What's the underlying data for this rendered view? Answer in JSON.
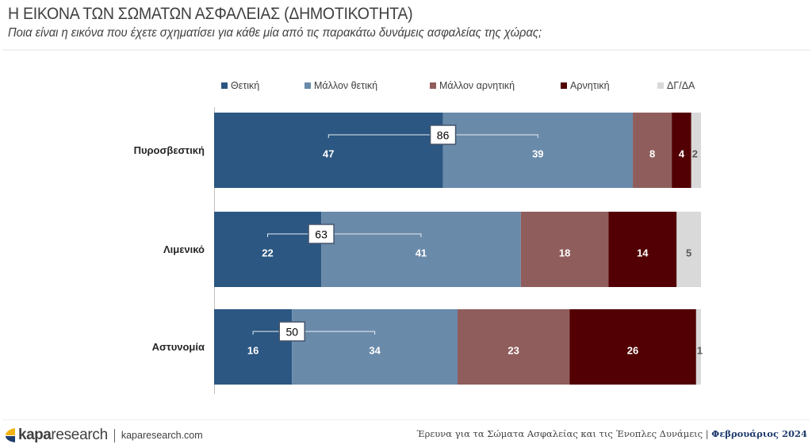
{
  "header": {
    "title": "Η ΕΙΚΟΝΑ ΤΩΝ ΣΩΜΑΤΩΝ ΑΣΦΑΛΕΙΑΣ (ΔΗΜΟΤΙΚΟΤΗΤΑ)",
    "subtitle": "Ποια είναι η εικόνα που έχετε σχηματίσει για κάθε μία από τις παρακάτω δυνάμεις ασφαλείας της χώρας;"
  },
  "chart_data": {
    "type": "bar",
    "orientation": "horizontal",
    "stacked": true,
    "title": "Η ΕΙΚΟΝΑ ΤΩΝ ΣΩΜΑΤΩΝ ΑΣΦΑΛΕΙΑΣ (ΔΗΜΟΤΙΚΟΤΗΤΑ)",
    "xlabel": "",
    "ylabel": "",
    "xlim": [
      0,
      100
    ],
    "grid": false,
    "legend_position": "top",
    "categories": [
      "Πυροσβεστική",
      "Λιμενικό",
      "Αστυνομία"
    ],
    "series": [
      {
        "name": "Θετική",
        "color": "#2b5782",
        "label_color": "#ffffff",
        "values": [
          47,
          22,
          16
        ]
      },
      {
        "name": "Μάλλον θετική",
        "color": "#6a8aaa",
        "label_color": "#ffffff",
        "values": [
          39,
          41,
          34
        ]
      },
      {
        "name": "Μάλλον αρνητική",
        "color": "#8f5e5c",
        "label_color": "#ffffff",
        "values": [
          8,
          18,
          23
        ]
      },
      {
        "name": "Αρνητική",
        "color": "#520003",
        "label_color": "#ffffff",
        "values": [
          4,
          14,
          26
        ]
      },
      {
        "name": "ΔΓ/ΔΑ",
        "color": "#d9d9d9",
        "label_color": "#595959",
        "values": [
          2,
          5,
          1
        ]
      }
    ],
    "totals_positive": [
      86,
      63,
      50
    ]
  },
  "footer": {
    "logo_bold": "kapa",
    "logo_light": "research",
    "site": "kaparesearch.com",
    "survey": "Έρευνα για τα Σώματα Ασφαλείας και τις Ένοπλες Δυνάμεις | ",
    "date": "Φεβρουάριος 2024",
    "logo_colors": {
      "top": "#f2b312",
      "bottom": "#1f3c6e"
    }
  }
}
